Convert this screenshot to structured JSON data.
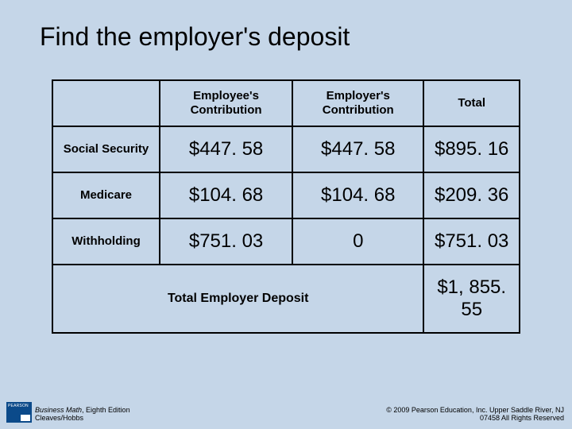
{
  "title": "Find the employer's deposit",
  "table": {
    "headers": [
      "Employee's Contribution",
      "Employer's Contribution",
      "Total"
    ],
    "rows": [
      {
        "label": "Social Security",
        "employee": "$447. 58",
        "employer": "$447. 58",
        "total": "$895. 16"
      },
      {
        "label": "Medicare",
        "employee": "$104. 68",
        "employer": "$104. 68",
        "total": "$209. 36"
      },
      {
        "label": "Withholding",
        "employee": "$751. 03",
        "employer": "0",
        "total": "$751. 03"
      }
    ],
    "total_label": "Total Employer Deposit",
    "total_value": "$1, 855. 55"
  },
  "footer": {
    "book_title": "Business Math",
    "edition": ", Eighth Edition",
    "authors": "Cleaves/Hobbs",
    "copyright_line1": "© 2009 Pearson Education, Inc. Upper Saddle River, NJ",
    "copyright_line2": "07458 All Rights Reserved"
  },
  "colors": {
    "background": "#c5d6e8",
    "border": "#000000",
    "text": "#000000",
    "logo": "#0b4a8a"
  }
}
